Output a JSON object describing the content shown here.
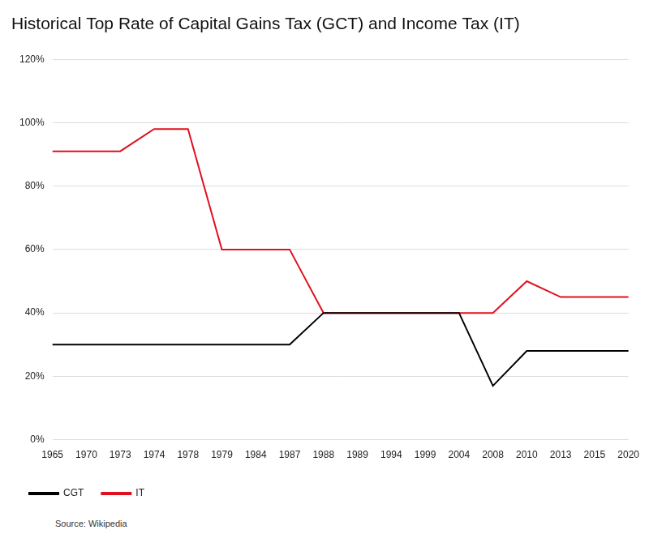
{
  "chart_data": {
    "type": "line",
    "title": "Historical Top Rate of Capital Gains Tax (GCT) and Income Tax (IT)",
    "source": "Source: Wikipedia",
    "categories": [
      "1965",
      "1970",
      "1973",
      "1974",
      "1978",
      "1979",
      "1984",
      "1987",
      "1988",
      "1989",
      "1994",
      "1999",
      "2004",
      "2008",
      "2010",
      "2013",
      "2015",
      "2020"
    ],
    "series": [
      {
        "name": "CGT",
        "color": "#000000",
        "values": [
          30,
          30,
          30,
          30,
          30,
          30,
          30,
          30,
          40,
          40,
          40,
          40,
          40,
          17,
          28,
          28,
          28,
          28
        ]
      },
      {
        "name": "IT",
        "color": "#e0101e",
        "values": [
          91,
          91,
          91,
          98,
          98,
          60,
          60,
          60,
          40,
          40,
          40,
          40,
          40,
          40,
          50,
          45,
          45,
          45
        ]
      }
    ],
    "ylim": [
      0,
      120
    ],
    "yticks": [
      {
        "value": 0,
        "label": "0%"
      },
      {
        "value": 20,
        "label": "20%"
      },
      {
        "value": 40,
        "label": "40%"
      },
      {
        "value": 60,
        "label": "60%"
      },
      {
        "value": 80,
        "label": "80%"
      },
      {
        "value": 100,
        "label": "100%"
      },
      {
        "value": 120,
        "label": "120%"
      }
    ],
    "grid": true,
    "legend": "bottom"
  }
}
